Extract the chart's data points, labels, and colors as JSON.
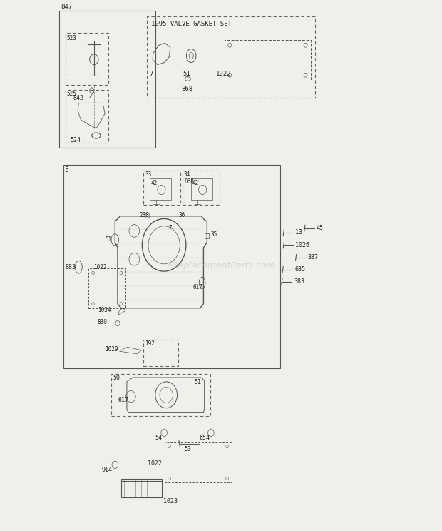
{
  "bg_color": "#f0f0eb",
  "watermark": "eReplacementParts.com",
  "box_color": "#555555",
  "text_color": "#222222",
  "dashed_color": "#888888"
}
